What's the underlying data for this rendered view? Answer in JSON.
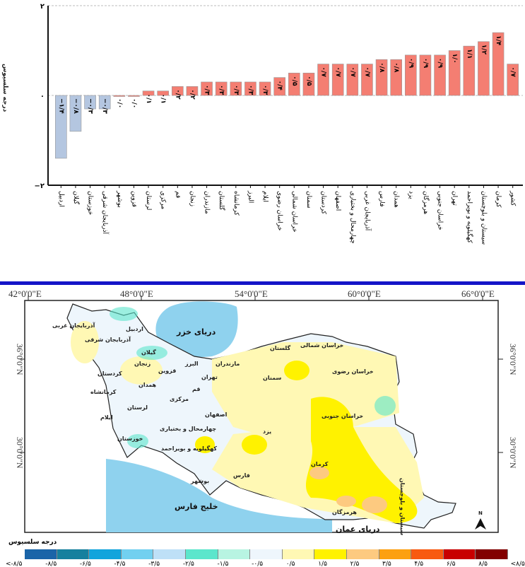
{
  "chart_data": {
    "type": "bar",
    "ylabel": "درجه سلسیوس",
    "ylim": [
      -2,
      2
    ],
    "yticks": [
      {
        "v": 2,
        "label": "۲"
      },
      {
        "v": 0,
        "label": "۰"
      },
      {
        "v": -2,
        "label": "−۲"
      }
    ],
    "categories": [
      "اردبیل",
      "گیلان",
      "خوزستان",
      "آذربایجان شرقی",
      "بوشهر",
      "قزوین",
      "لرستان",
      "مرکزی",
      "قم",
      "زنجان",
      "مازندران",
      "گلستان",
      "کرمانشاه",
      "البرز",
      "ایلام",
      "خراسان رضوی",
      "خراسان شمالی",
      "سمنان",
      "کردستان",
      "اصفهان",
      "چهارمحال و بختیاری",
      "آذربایجان غربی",
      "فارس",
      "همدان",
      "یزد",
      "هرمزگان",
      "خراسان جنوبی",
      "تهران",
      "کهگیلویه و بویراحمد",
      "سیستان و بلوچستان",
      "کرمان",
      "کشور"
    ],
    "values": [
      -1.4,
      -0.8,
      -0.3,
      -0.3,
      0,
      0,
      0.1,
      0.1,
      0.2,
      0.2,
      0.3,
      0.3,
      0.3,
      0.3,
      0.3,
      0.4,
      0.5,
      0.5,
      0.7,
      0.7,
      0.7,
      0.7,
      0.8,
      0.8,
      0.9,
      0.9,
      0.9,
      1.0,
      1.1,
      1.2,
      1.4,
      0.7
    ],
    "value_labels": [
      "−۱/۴",
      "−۰/۸",
      "−۰/۳",
      "−۰/۳",
      "۰/۰",
      "۰/۰",
      "۰/۱",
      "۰/۱",
      "۰/۲",
      "۰/۲",
      "۰/۳",
      "۰/۳",
      "۰/۳",
      "۰/۳",
      "۰/۳",
      "۰/۴",
      "۰/۵",
      "۰/۵",
      "۰/۷",
      "۰/۷",
      "۰/۷",
      "۰/۷",
      "۰/۸",
      "۰/۸",
      "۰/۹",
      "۰/۹",
      "۰/۹",
      "۱/۰",
      "۱/۱",
      "۱/۲",
      "۱/۴",
      "۰/۷"
    ],
    "colors": {
      "positive": "#f47e72",
      "negative": "#b4c6e0"
    }
  },
  "map": {
    "lon_labels": [
      "42°0'0\"E",
      "48°0'0\"E",
      "54°0'0\"E",
      "60°0'0\"E",
      "66°0'0\"E"
    ],
    "lat_labels": [
      "36°0'0\"N",
      "30°0'0\"N"
    ],
    "seas": {
      "caspian": "دریای خزر",
      "gulf": "خلیج فارس",
      "oman": "دریای عمان"
    },
    "north": "N",
    "provinces": [
      "آذربایجان غربی",
      "آذربایجان شرقی",
      "اردبیل",
      "گیلان",
      "زنجان",
      "کردستان",
      "قزوین",
      "البرز",
      "تهران",
      "مازندران",
      "گلستان",
      "خراسان شمالی",
      "خراسان رضوی",
      "سمنان",
      "کرمانشاه",
      "همدان",
      "مرکزی",
      "قم",
      "لرستان",
      "ایلام",
      "اصفهان",
      "خوزستان",
      "چهارمحال و بختیاری",
      "کهگیلویه و بویراحمد",
      "یزد",
      "خراسان جنوبی",
      "فارس",
      "بوشهر",
      "کرمان",
      "هرمزگان",
      "سیستان و بلوچستان"
    ]
  },
  "legend": {
    "title": "درجه سلسیوس",
    "labels": [
      "<-۸/۵",
      "-۸/۵",
      "-۶/۵",
      "-۴/۵",
      "-۳/۵",
      "-۲/۵",
      "-۱/۵",
      "-۰/۵",
      "۰/۵",
      "۱/۵",
      "۲/۵",
      "۳/۵",
      "۴/۵",
      "۶/۵",
      "۸/۵",
      "<۸/۵"
    ],
    "colors": [
      "#1a64a8",
      "#16809e",
      "#12a4dc",
      "#72d0f0",
      "#bee0f7",
      "#5ce6cc",
      "#b8f4e2",
      "#eef6fc",
      "#fff8b4",
      "#fff200",
      "#fdca80",
      "#fca010",
      "#f85a10",
      "#c80000",
      "#820000"
    ]
  }
}
